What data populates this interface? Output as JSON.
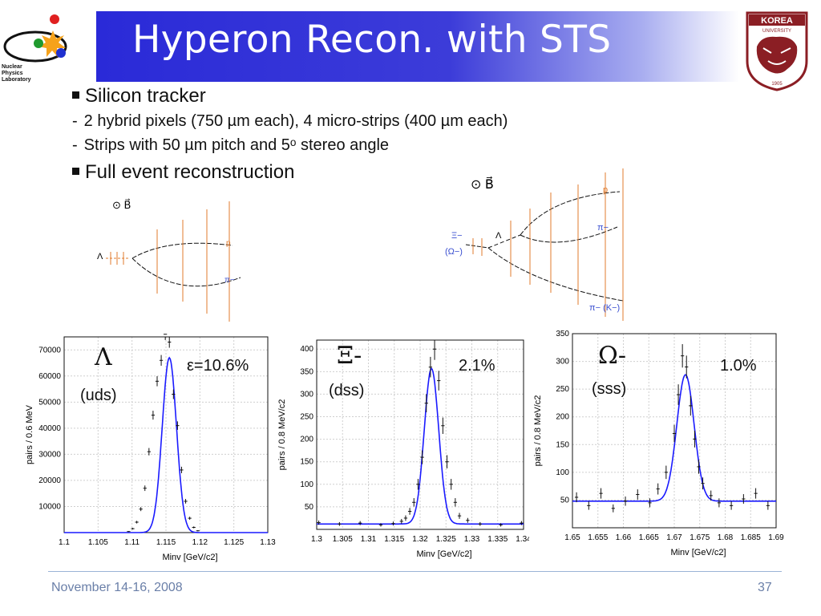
{
  "slide": {
    "title": "Hyperon Recon. with STS",
    "logo_text": [
      "Nuclear",
      "Physics",
      "Laboratory"
    ],
    "univ_logo_text": [
      "KOREA",
      "UNIVERSITY",
      "1905"
    ],
    "bullets": [
      {
        "type": "main",
        "text": "Silicon tracker"
      },
      {
        "type": "sub",
        "text": "2 hybrid pixels (750 µm each), 4 micro-strips (400 µm each)"
      },
      {
        "type": "sub",
        "text": "Strips with 50 µm pitch and 5ᵒ stereo angle"
      },
      {
        "type": "main",
        "text": "Full event reconstruction"
      }
    ],
    "diagram_left": {
      "b_field": "⊙ B⃗",
      "labels": [
        "Λ",
        "p",
        "π−"
      ]
    },
    "diagram_right": {
      "b_field": "⊙ B⃗",
      "labels": [
        "Ξ−",
        "(Ω−)",
        "Λ",
        "p",
        "π−",
        "π− (K−)"
      ]
    },
    "panels": [
      {
        "particle": "Λ",
        "quarks": "(uds)",
        "efficiency": "ε=10.6%"
      },
      {
        "particle": "Ξ-",
        "quarks": "(dss)",
        "efficiency": "2.1%"
      },
      {
        "particle": "Ω-",
        "quarks": "(sss)",
        "efficiency": "1.0%"
      }
    ],
    "footer": {
      "date": "November 14-16, 2008",
      "page": "37"
    },
    "colors": {
      "title_bg": "#2a2ad8",
      "fit_line": "#1a1aff",
      "track_mark": "#e07b2e",
      "label_blue": "#3a4fd0"
    }
  },
  "chart_data": [
    {
      "type": "line",
      "title": "",
      "xlabel": "Minv [GeV/c2]",
      "ylabel": "pairs / 0.6 MeV",
      "xlim": [
        1.1,
        1.13
      ],
      "ylim": [
        0,
        75000
      ],
      "xticks": [
        "1.1",
        "1.105",
        "1.11",
        "1.115",
        "1.12",
        "1.125",
        "1.13"
      ],
      "yticks": [
        "10000",
        "20000",
        "30000",
        "40000",
        "50000",
        "60000",
        "70000"
      ],
      "grid": true,
      "fit": {
        "mean": 1.1155,
        "sigma": 0.00105,
        "amplitude": 67000,
        "background": 0
      },
      "series": [
        {
          "x": [
            1.1095,
            1.1101,
            1.1107,
            1.1113,
            1.1119,
            1.1125,
            1.1131,
            1.1137,
            1.1143,
            1.1149,
            1.1155,
            1.1161,
            1.1167,
            1.1173,
            1.1179,
            1.1185,
            1.1191,
            1.1197
          ],
          "values": [
            400,
            1500,
            4000,
            9000,
            17000,
            31000,
            45000,
            58000,
            66000,
            76000,
            73000,
            53000,
            41000,
            24000,
            12000,
            5500,
            2000,
            700
          ]
        }
      ]
    },
    {
      "type": "line",
      "title": "",
      "xlabel": "Minv [GeV/c2]",
      "ylabel": "pairs / 0.8 MeV/c2",
      "xlim": [
        1.3,
        1.34
      ],
      "ylim": [
        0,
        420
      ],
      "xticks": [
        "1.3",
        "1.305",
        "1.31",
        "1.315",
        "1.32",
        "1.325",
        "1.33",
        "1.335",
        "1.34"
      ],
      "yticks": [
        "50",
        "100",
        "150",
        "200",
        "250",
        "300",
        "350",
        "400"
      ],
      "grid": true,
      "fit": {
        "mean": 1.3222,
        "sigma": 0.0014,
        "amplitude": 345,
        "background": 12
      },
      "series": [
        {
          "x": [
            1.3004,
            1.3044,
            1.3084,
            1.3124,
            1.3148,
            1.3164,
            1.3172,
            1.318,
            1.3188,
            1.3196,
            1.3204,
            1.3212,
            1.322,
            1.3228,
            1.3236,
            1.3244,
            1.3252,
            1.326,
            1.3268,
            1.3276,
            1.3292,
            1.3316,
            1.3356,
            1.3396
          ],
          "values": [
            15,
            12,
            14,
            10,
            13,
            18,
            25,
            40,
            60,
            100,
            160,
            280,
            360,
            400,
            330,
            230,
            150,
            100,
            60,
            30,
            20,
            12,
            10,
            14
          ]
        }
      ]
    },
    {
      "type": "line",
      "title": "",
      "xlabel": "Minv [GeV/c2]",
      "ylabel": "pairs / 0.8 MeV/c2",
      "xlim": [
        1.65,
        1.69
      ],
      "ylim": [
        0,
        350
      ],
      "xticks": [
        "1.65",
        "1.655",
        "1.66",
        "1.665",
        "1.67",
        "1.675",
        "1.68",
        "1.685",
        "1.69"
      ],
      "yticks": [
        "50",
        "100",
        "150",
        "200",
        "250",
        "300",
        "350"
      ],
      "grid": true,
      "fit": {
        "mean": 1.6722,
        "sigma": 0.0017,
        "amplitude": 228,
        "background": 48
      },
      "series": [
        {
          "x": [
            1.6508,
            1.6532,
            1.6556,
            1.658,
            1.6604,
            1.6628,
            1.6652,
            1.6668,
            1.6684,
            1.67,
            1.6708,
            1.6716,
            1.6724,
            1.6732,
            1.674,
            1.6748,
            1.6756,
            1.6772,
            1.6788,
            1.6812,
            1.6836,
            1.686,
            1.6884
          ],
          "values": [
            55,
            40,
            62,
            35,
            48,
            60,
            45,
            70,
            100,
            170,
            240,
            310,
            290,
            220,
            160,
            110,
            80,
            58,
            45,
            40,
            52,
            62,
            40
          ]
        }
      ]
    }
  ]
}
